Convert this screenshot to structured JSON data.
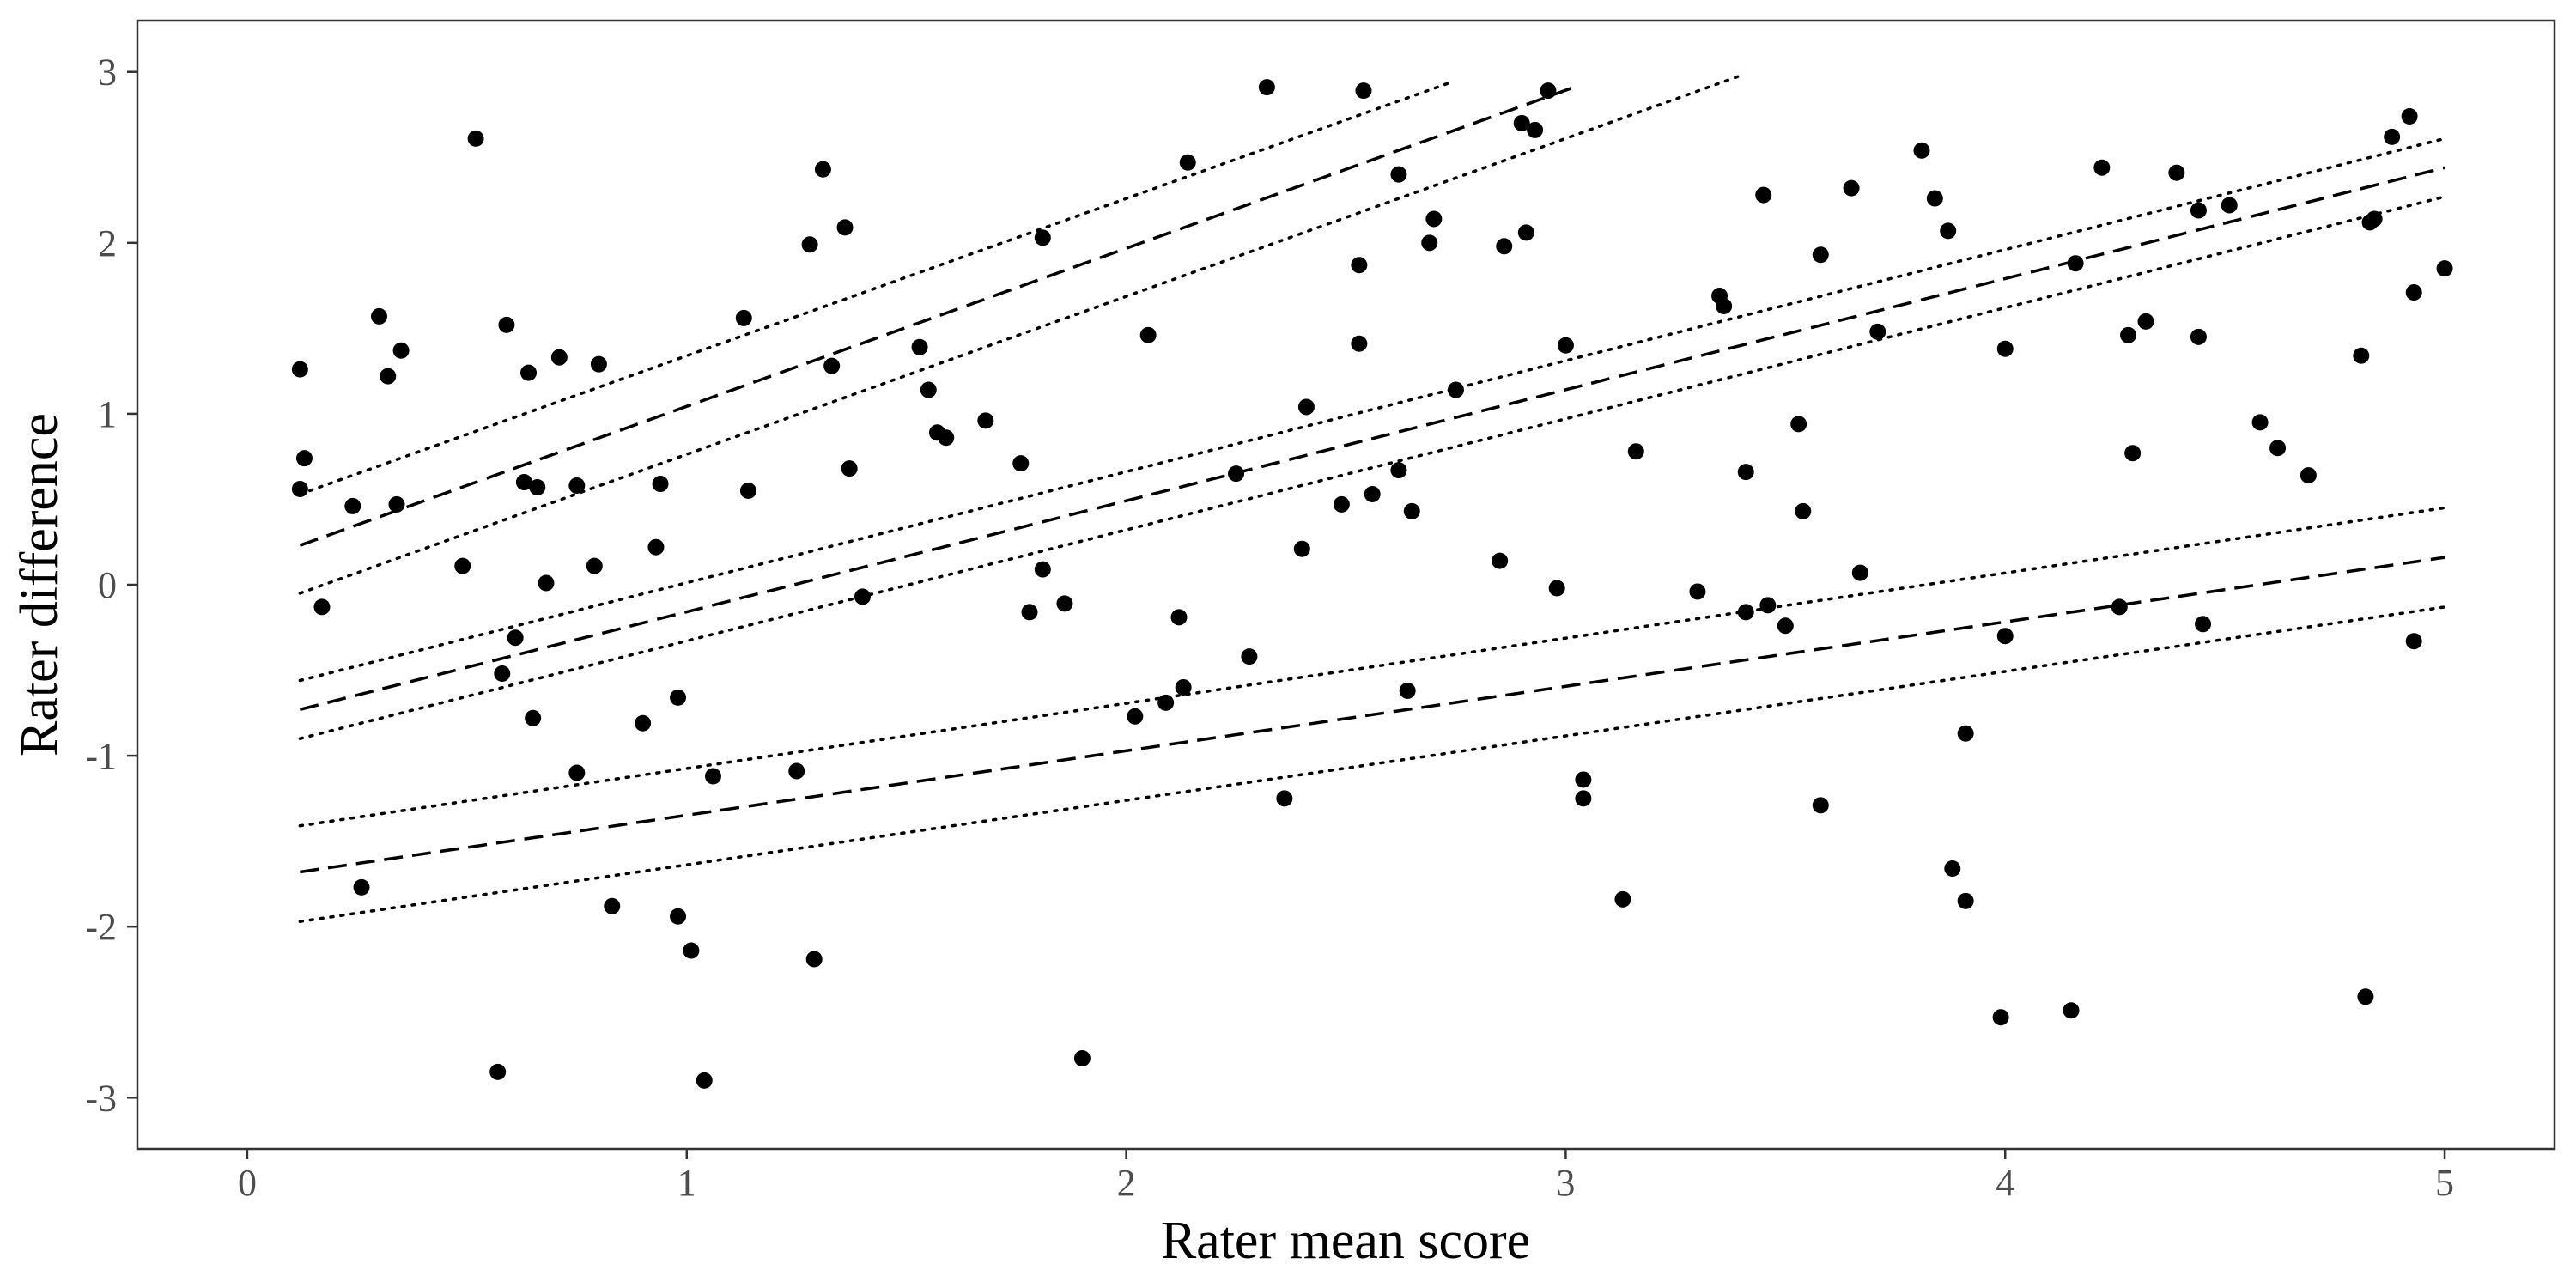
{
  "chart_data": {
    "type": "scatter",
    "title": "",
    "xlabel": "Rater mean score",
    "ylabel": "Rater difference",
    "xlim": [
      -0.25,
      5.25
    ],
    "ylim": [
      -3.3,
      3.3
    ],
    "xticks": [
      0,
      1,
      2,
      3,
      4,
      5
    ],
    "xtick_labels": [
      "0",
      "1",
      "2",
      "3",
      "4",
      "5"
    ],
    "yticks": [
      -3,
      -2,
      -1,
      0,
      1,
      2,
      3
    ],
    "ytick_labels": [
      "-3",
      "-2",
      "-1",
      "0",
      "1",
      "2",
      "3"
    ],
    "grid": false,
    "legend": "none",
    "colors": {
      "points": "#000000",
      "lines": "#000000",
      "panel_border": "#333333",
      "tick_text": "#4d4d4d"
    },
    "points": [
      {
        "x": 0.12,
        "y": 1.26
      },
      {
        "x": 0.13,
        "y": 0.74
      },
      {
        "x": 0.12,
        "y": 0.56
      },
      {
        "x": 0.17,
        "y": -0.13
      },
      {
        "x": 0.24,
        "y": 0.46
      },
      {
        "x": 0.3,
        "y": 1.57
      },
      {
        "x": 0.32,
        "y": 1.22
      },
      {
        "x": 0.35,
        "y": 1.37
      },
      {
        "x": 0.34,
        "y": 0.47
      },
      {
        "x": 0.26,
        "y": -1.77
      },
      {
        "x": 0.49,
        "y": 0.11
      },
      {
        "x": 0.52,
        "y": 2.61
      },
      {
        "x": 0.59,
        "y": 1.52
      },
      {
        "x": 0.61,
        "y": -0.31
      },
      {
        "x": 0.58,
        "y": -0.52
      },
      {
        "x": 0.57,
        "y": -2.85
      },
      {
        "x": 0.63,
        "y": 0.6
      },
      {
        "x": 0.64,
        "y": 1.24
      },
      {
        "x": 0.66,
        "y": 0.57
      },
      {
        "x": 0.65,
        "y": -0.78
      },
      {
        "x": 0.68,
        "y": 0.01
      },
      {
        "x": 0.71,
        "y": 1.33
      },
      {
        "x": 0.75,
        "y": 0.58
      },
      {
        "x": 0.75,
        "y": -1.1
      },
      {
        "x": 0.79,
        "y": 0.11
      },
      {
        "x": 0.8,
        "y": 1.29
      },
      {
        "x": 0.83,
        "y": -1.88
      },
      {
        "x": 0.9,
        "y": -0.81
      },
      {
        "x": 0.93,
        "y": 0.22
      },
      {
        "x": 0.94,
        "y": 0.59
      },
      {
        "x": 0.98,
        "y": -0.66
      },
      {
        "x": 0.98,
        "y": -1.94
      },
      {
        "x": 1.01,
        "y": -2.14
      },
      {
        "x": 1.04,
        "y": -2.9
      },
      {
        "x": 1.06,
        "y": -1.12
      },
      {
        "x": 1.13,
        "y": 1.56
      },
      {
        "x": 1.14,
        "y": 0.55
      },
      {
        "x": 1.25,
        "y": -1.09
      },
      {
        "x": 1.28,
        "y": 1.99
      },
      {
        "x": 1.29,
        "y": -2.19
      },
      {
        "x": 1.31,
        "y": 2.43
      },
      {
        "x": 1.33,
        "y": 1.28
      },
      {
        "x": 1.36,
        "y": 2.09
      },
      {
        "x": 1.37,
        "y": 0.68
      },
      {
        "x": 1.4,
        "y": -0.07
      },
      {
        "x": 1.53,
        "y": 1.39
      },
      {
        "x": 1.55,
        "y": 1.14
      },
      {
        "x": 1.57,
        "y": 0.89
      },
      {
        "x": 1.59,
        "y": 0.86
      },
      {
        "x": 1.68,
        "y": 0.96
      },
      {
        "x": 1.76,
        "y": 0.71
      },
      {
        "x": 1.78,
        "y": -0.16
      },
      {
        "x": 1.81,
        "y": 2.03
      },
      {
        "x": 1.81,
        "y": 0.09
      },
      {
        "x": 1.86,
        "y": -0.11
      },
      {
        "x": 1.9,
        "y": -2.77
      },
      {
        "x": 2.02,
        "y": -0.77
      },
      {
        "x": 2.05,
        "y": 1.46
      },
      {
        "x": 2.09,
        "y": -0.69
      },
      {
        "x": 2.12,
        "y": -0.19
      },
      {
        "x": 2.13,
        "y": -0.6
      },
      {
        "x": 2.14,
        "y": 2.47
      },
      {
        "x": 2.25,
        "y": 0.65
      },
      {
        "x": 2.28,
        "y": -0.42
      },
      {
        "x": 2.32,
        "y": 2.91
      },
      {
        "x": 2.36,
        "y": -1.25
      },
      {
        "x": 2.4,
        "y": 0.21
      },
      {
        "x": 2.41,
        "y": 1.04
      },
      {
        "x": 2.49,
        "y": 0.47
      },
      {
        "x": 2.53,
        "y": 1.41
      },
      {
        "x": 2.53,
        "y": 1.87
      },
      {
        "x": 2.54,
        "y": 2.89
      },
      {
        "x": 2.56,
        "y": 0.53
      },
      {
        "x": 2.62,
        "y": 2.4
      },
      {
        "x": 2.62,
        "y": 0.67
      },
      {
        "x": 2.64,
        "y": -0.62
      },
      {
        "x": 2.65,
        "y": 0.43
      },
      {
        "x": 2.69,
        "y": 2.0
      },
      {
        "x": 2.7,
        "y": 2.14
      },
      {
        "x": 2.75,
        "y": 1.14
      },
      {
        "x": 2.85,
        "y": 0.14
      },
      {
        "x": 2.86,
        "y": 1.98
      },
      {
        "x": 2.9,
        "y": 2.7
      },
      {
        "x": 2.91,
        "y": 2.06
      },
      {
        "x": 2.93,
        "y": 2.66
      },
      {
        "x": 2.96,
        "y": 2.89
      },
      {
        "x": 2.98,
        "y": -0.02
      },
      {
        "x": 3.0,
        "y": 1.4
      },
      {
        "x": 3.04,
        "y": -1.14
      },
      {
        "x": 3.04,
        "y": -1.25
      },
      {
        "x": 3.13,
        "y": -1.84
      },
      {
        "x": 3.16,
        "y": 0.78
      },
      {
        "x": 3.3,
        "y": -0.04
      },
      {
        "x": 3.35,
        "y": 1.69
      },
      {
        "x": 3.36,
        "y": 1.63
      },
      {
        "x": 3.41,
        "y": 0.66
      },
      {
        "x": 3.41,
        "y": -0.16
      },
      {
        "x": 3.45,
        "y": 2.28
      },
      {
        "x": 3.46,
        "y": -0.12
      },
      {
        "x": 3.5,
        "y": -0.24
      },
      {
        "x": 3.53,
        "y": 0.94
      },
      {
        "x": 3.54,
        "y": 0.43
      },
      {
        "x": 3.58,
        "y": 1.93
      },
      {
        "x": 3.58,
        "y": -1.29
      },
      {
        "x": 3.65,
        "y": 2.32
      },
      {
        "x": 3.67,
        "y": 0.07
      },
      {
        "x": 3.71,
        "y": 1.48
      },
      {
        "x": 3.81,
        "y": 2.54
      },
      {
        "x": 3.84,
        "y": 2.26
      },
      {
        "x": 3.87,
        "y": 2.07
      },
      {
        "x": 3.88,
        "y": -1.66
      },
      {
        "x": 3.91,
        "y": -0.87
      },
      {
        "x": 3.91,
        "y": -1.85
      },
      {
        "x": 3.99,
        "y": -2.53
      },
      {
        "x": 4.0,
        "y": 1.38
      },
      {
        "x": 4.0,
        "y": -0.3
      },
      {
        "x": 4.15,
        "y": -2.49
      },
      {
        "x": 4.16,
        "y": 1.88
      },
      {
        "x": 4.22,
        "y": 2.44
      },
      {
        "x": 4.26,
        "y": -0.13
      },
      {
        "x": 4.28,
        "y": 1.46
      },
      {
        "x": 4.29,
        "y": 0.77
      },
      {
        "x": 4.32,
        "y": 1.54
      },
      {
        "x": 4.39,
        "y": 2.41
      },
      {
        "x": 4.44,
        "y": 2.19
      },
      {
        "x": 4.44,
        "y": 1.45
      },
      {
        "x": 4.45,
        "y": -0.23
      },
      {
        "x": 4.51,
        "y": 2.22
      },
      {
        "x": 4.58,
        "y": 0.95
      },
      {
        "x": 4.62,
        "y": 0.8
      },
      {
        "x": 4.69,
        "y": 0.64
      },
      {
        "x": 4.81,
        "y": 1.34
      },
      {
        "x": 4.82,
        "y": -2.41
      },
      {
        "x": 4.83,
        "y": 2.12
      },
      {
        "x": 4.84,
        "y": 2.14
      },
      {
        "x": 4.88,
        "y": 2.62
      },
      {
        "x": 4.92,
        "y": 2.74
      },
      {
        "x": 4.93,
        "y": 1.71
      },
      {
        "x": 4.93,
        "y": -0.33
      },
      {
        "x": 5.0,
        "y": 1.85
      }
    ],
    "lines": [
      {
        "style": "dotted",
        "x": [
          0.12,
          2.74
        ],
        "y": [
          0.53,
          2.94
        ]
      },
      {
        "style": "dashed",
        "x": [
          0.12,
          3.03
        ],
        "y": [
          0.23,
          2.92
        ]
      },
      {
        "style": "dotted",
        "x": [
          0.12,
          3.4
        ],
        "y": [
          -0.05,
          2.98
        ]
      },
      {
        "style": "dotted",
        "x": [
          0.12,
          5.0
        ],
        "y": [
          -0.56,
          2.61
        ]
      },
      {
        "style": "dashed",
        "x": [
          0.12,
          5.0
        ],
        "y": [
          -0.73,
          2.44
        ]
      },
      {
        "style": "dotted",
        "x": [
          0.12,
          5.0
        ],
        "y": [
          -0.9,
          2.27
        ]
      },
      {
        "style": "dotted",
        "x": [
          0.12,
          5.0
        ],
        "y": [
          -1.41,
          0.45
        ]
      },
      {
        "style": "dashed",
        "x": [
          0.12,
          5.0
        ],
        "y": [
          -1.68,
          0.16
        ]
      },
      {
        "style": "dotted",
        "x": [
          0.12,
          5.0
        ],
        "y": [
          -1.97,
          -0.13
        ]
      }
    ]
  }
}
